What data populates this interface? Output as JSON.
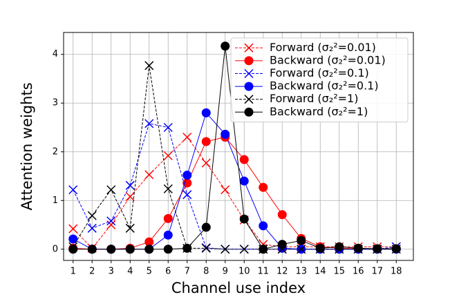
{
  "chart_data": {
    "type": "line",
    "xlabel": "Channel use index",
    "ylabel": "Attention weights",
    "x": [
      1,
      2,
      3,
      4,
      5,
      6,
      7,
      8,
      9,
      10,
      11,
      12,
      13,
      14,
      15,
      16,
      17,
      18
    ],
    "xlim": [
      0.5,
      18.9
    ],
    "xticks": [
      1,
      2,
      3,
      4,
      5,
      6,
      7,
      8,
      9,
      10,
      11,
      12,
      13,
      14,
      15,
      16,
      17,
      18
    ],
    "ylim": [
      -0.23,
      4.45
    ],
    "yticks": [
      0,
      1,
      2,
      3,
      4
    ],
    "grid": true,
    "legend": "upper right",
    "series": [
      {
        "name": "Forward (σ₂²=0.01)",
        "color": "#ff0000",
        "linestyle": "dashed",
        "marker": "x",
        "values": [
          0.42,
          0.02,
          0.5,
          1.08,
          1.53,
          1.92,
          2.3,
          1.77,
          1.22,
          0.6,
          0.1,
          0.05,
          0.05,
          0.05,
          0.05,
          0.05,
          0.05,
          0.05
        ]
      },
      {
        "name": "Backward (σ₂²=0.01)",
        "color": "#ff0000",
        "linestyle": "solid",
        "marker": "o",
        "values": [
          0.02,
          0,
          0,
          0.02,
          0.15,
          0.63,
          1.36,
          2.21,
          2.3,
          1.84,
          1.27,
          0.71,
          0.22,
          0.05,
          0.02,
          0.01,
          0.01,
          0.01
        ]
      },
      {
        "name": "Forward (σ₂²=0.1)",
        "color": "#0000ff",
        "linestyle": "dashed",
        "marker": "x",
        "values": [
          1.22,
          0.43,
          0.58,
          1.31,
          2.58,
          2.5,
          1.12,
          0.03,
          0,
          0,
          0,
          0,
          0,
          0,
          0,
          0,
          0,
          0.05
        ]
      },
      {
        "name": "Backward (σ₂²=0.1)",
        "color": "#0000ff",
        "linestyle": "solid",
        "marker": "o",
        "values": [
          0.21,
          0,
          0,
          0,
          0,
          0.29,
          1.52,
          2.8,
          2.36,
          1.4,
          0.48,
          0.02,
          0,
          0,
          0,
          0,
          0,
          0
        ]
      },
      {
        "name": "Forward (σ₂²=1)",
        "color": "#000000",
        "linestyle": "dashed",
        "marker": "x",
        "values": [
          0.05,
          0.69,
          1.22,
          0.43,
          3.77,
          1.24,
          0.02,
          0.02,
          0,
          0,
          0,
          0,
          0,
          0,
          0,
          0,
          0,
          0
        ]
      },
      {
        "name": "Backward (σ₂²=1)",
        "color": "#000000",
        "linestyle": "solid",
        "marker": "o",
        "values": [
          0,
          0,
          0,
          0,
          0,
          0,
          0.02,
          0.45,
          4.17,
          0.62,
          0,
          0.1,
          0.18,
          0.02,
          0.05,
          0.02,
          0.01,
          0.01
        ]
      }
    ]
  }
}
